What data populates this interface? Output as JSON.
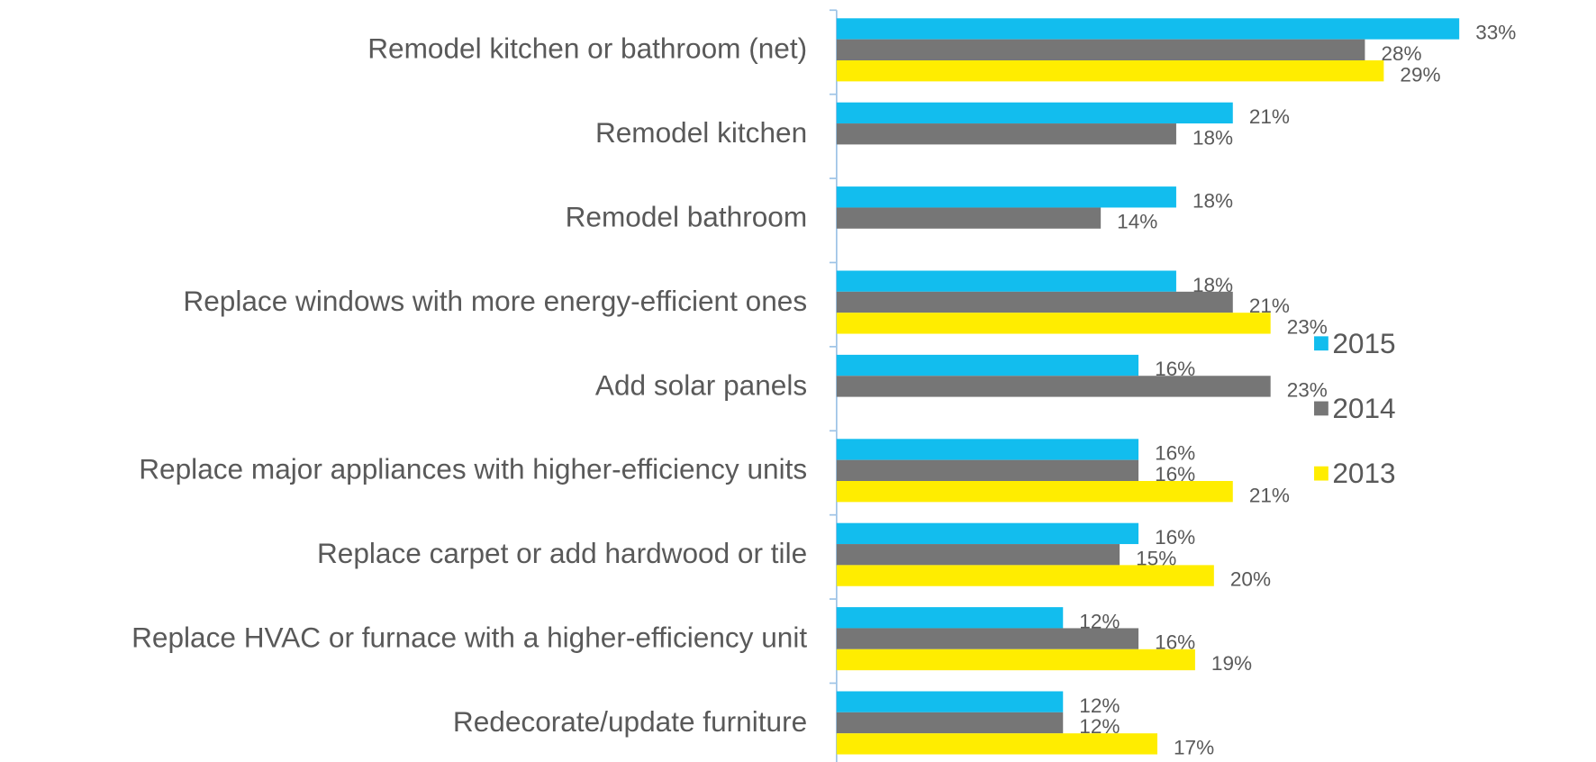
{
  "chart_data": {
    "type": "bar",
    "orientation": "horizontal",
    "categories": [
      "Remodel kitchen or bathroom (net)",
      "Remodel kitchen",
      "Remodel bathroom",
      "Replace windows with more energy-efficient ones",
      "Add solar panels",
      "Replace major appliances with higher-efficiency units",
      "Replace carpet or add hardwood or tile",
      "Replace HVAC or furnace with a higher-efficiency unit",
      "Redecorate/update furniture"
    ],
    "series": [
      {
        "name": "2015",
        "color": "#12bdee",
        "values": [
          33,
          21,
          18,
          18,
          16,
          16,
          16,
          12,
          12
        ],
        "value_labels": [
          "33%",
          "21%",
          "18%",
          "18%",
          "16%",
          "16%",
          "16%",
          "12%",
          "12%"
        ]
      },
      {
        "name": "2014",
        "color": "#767676",
        "values": [
          28,
          18,
          14,
          21,
          23,
          16,
          15,
          16,
          12
        ],
        "value_labels": [
          "28%",
          "18%",
          "14%",
          "21%",
          "23%",
          "16%",
          "15%",
          "16%",
          "12%"
        ]
      },
      {
        "name": "2013",
        "color": "#ffed00",
        "values": [
          29,
          null,
          null,
          23,
          null,
          21,
          20,
          19,
          17
        ],
        "value_labels": [
          "29%",
          null,
          null,
          "23%",
          null,
          "21%",
          "20%",
          "19%",
          "17%"
        ]
      }
    ],
    "xlim": [
      0,
      35
    ],
    "legend": "right"
  }
}
